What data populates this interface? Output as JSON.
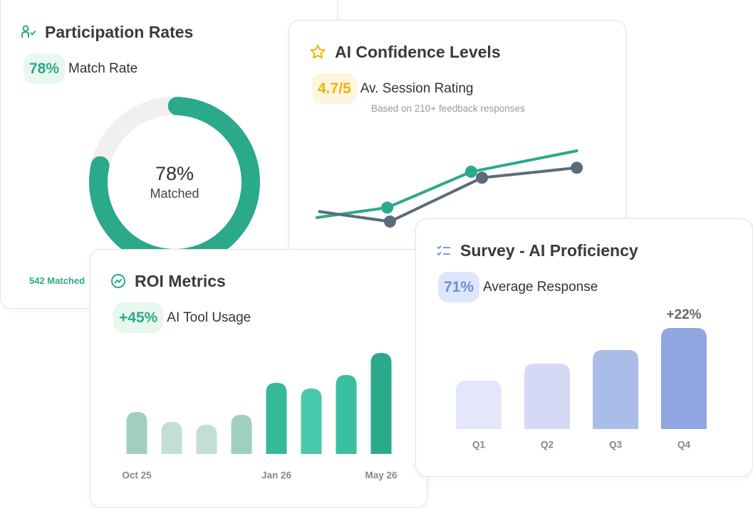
{
  "chart_data": [
    {
      "type": "donut",
      "title": "Participation Rates",
      "badge": "78%",
      "badge_label": "Match Rate",
      "values": [
        78
      ],
      "value_labels": [
        "78%"
      ],
      "center_caption": "Matched",
      "ylim": [
        0,
        100
      ],
      "color": "#2aaa8a",
      "track_color": "#f0f0f0",
      "footer": "542 Matched"
    },
    {
      "type": "line",
      "title": "AI Confidence Levels",
      "badge": "4.7/5",
      "badge_label": "Av. Session Rating",
      "subtitle": "Based on 210+ feedback responses",
      "xlim": [
        0,
        100
      ],
      "ylim": [
        0,
        100
      ],
      "series": [
        {
          "color": "#2aaa8a",
          "x": [
            1,
            27,
            58,
            97
          ],
          "values": [
            18,
            28,
            64,
            85
          ],
          "markers": [
            false,
            true,
            true,
            false
          ]
        },
        {
          "color": "#5a6b7b",
          "x": [
            2,
            28,
            62,
            97
          ],
          "values": [
            24,
            14,
            58,
            68
          ],
          "markers": [
            false,
            true,
            true,
            true
          ]
        }
      ]
    },
    {
      "type": "bar",
      "title": "ROI Metrics",
      "badge": "+45%",
      "badge_label": "AI Tool Usage",
      "categories": [
        "Oct 25",
        null,
        null,
        null,
        "Jan 26",
        null,
        null,
        "May 26"
      ],
      "values": [
        59,
        45,
        41,
        55,
        100,
        92,
        111,
        142
      ],
      "colors": [
        "#a0cfc2",
        "#c3ded7",
        "#c3ded7",
        "#a0cfc2",
        "#36b89a",
        "#48c8aa",
        "#3abfa1",
        "#2aaa8a"
      ],
      "ylim": [
        0,
        150
      ]
    },
    {
      "type": "bar",
      "title": "Survey - AI Proficiency",
      "badge": "71%",
      "badge_label": "Average Response",
      "categories": [
        "Q1",
        "Q2",
        "Q3",
        "Q4"
      ],
      "values": [
        68,
        92,
        111,
        142
      ],
      "colors": [
        "#e4e7fb",
        "#d5d9f6",
        "#aabde9",
        "#91a6e0"
      ],
      "ylim": [
        0,
        150
      ],
      "annotation": "+22%"
    }
  ]
}
